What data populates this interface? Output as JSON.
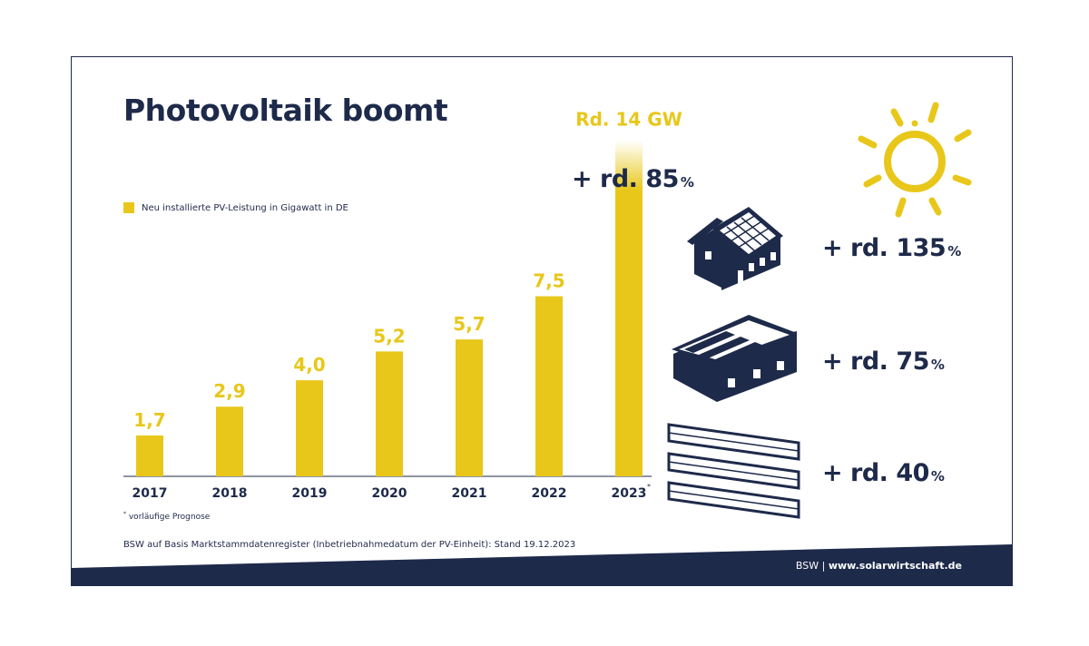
{
  "title": "Photovoltaik boomt",
  "legend_label": "Neu installierte PV-Leistung in Gigawatt in DE",
  "chart_data": {
    "type": "bar",
    "categories": [
      "2017",
      "2018",
      "2019",
      "2020",
      "2021",
      "2022",
      "2023"
    ],
    "values": [
      1.7,
      2.9,
      4.0,
      5.2,
      5.7,
      7.5,
      14
    ],
    "value_labels": [
      "1,7",
      "2,9",
      "4,0",
      "5,2",
      "5,7",
      "7,5",
      "Rd. 14 GW"
    ],
    "category_marks": [
      "",
      "",
      "",
      "",
      "",
      "",
      "*"
    ],
    "series": [
      {
        "name": "Neu installierte PV-Leistung in Gigawatt in DE",
        "values": [
          1.7,
          2.9,
          4.0,
          5.2,
          5.7,
          7.5,
          14
        ]
      }
    ],
    "title": "Photovoltaik boomt",
    "xlabel": "",
    "ylabel": "",
    "ylim": [
      0,
      15
    ],
    "grid": false,
    "legend": "top-left",
    "bar_color": "#e8c71a"
  },
  "growth": {
    "total": {
      "value": "+ rd. 85",
      "unit": "%"
    },
    "residential": {
      "value": "+ rd. 135",
      "unit": "%",
      "icon": "house-solar-icon"
    },
    "commercial": {
      "value": "+ rd. 75",
      "unit": "%",
      "icon": "commercial-roof-solar-icon"
    },
    "ground": {
      "value": "+ rd. 40",
      "unit": "%",
      "icon": "ground-mounted-solar-icon"
    }
  },
  "footnote": {
    "mark": "*",
    "text": " vorläufige Prognose"
  },
  "source": "BSW auf Basis Marktstammdatenregister (Inbetriebnahmedatum der PV-Einheit): Stand 19.12.2023",
  "footer": {
    "brand": "BSW",
    "separator": " | ",
    "url": "www.solarwirtschaft.de"
  },
  "colors": {
    "navy": "#1e2a4a",
    "yellow": "#e8c71a"
  }
}
